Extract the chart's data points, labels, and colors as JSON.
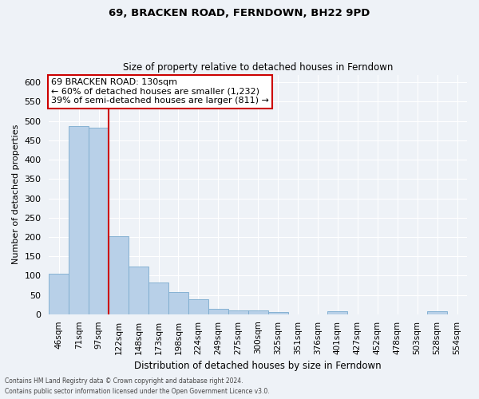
{
  "title": "69, BRACKEN ROAD, FERNDOWN, BH22 9PD",
  "subtitle": "Size of property relative to detached houses in Ferndown",
  "xlabel": "Distribution of detached houses by size in Ferndown",
  "ylabel": "Number of detached properties",
  "footer_line1": "Contains HM Land Registry data © Crown copyright and database right 2024.",
  "footer_line2": "Contains public sector information licensed under the Open Government Licence v3.0.",
  "categories": [
    "46sqm",
    "71sqm",
    "97sqm",
    "122sqm",
    "148sqm",
    "173sqm",
    "198sqm",
    "224sqm",
    "249sqm",
    "275sqm",
    "300sqm",
    "325sqm",
    "351sqm",
    "376sqm",
    "401sqm",
    "427sqm",
    "452sqm",
    "478sqm",
    "503sqm",
    "528sqm",
    "554sqm"
  ],
  "values": [
    105,
    487,
    483,
    202,
    123,
    82,
    57,
    38,
    15,
    10,
    10,
    5,
    0,
    0,
    8,
    0,
    0,
    0,
    0,
    8,
    0
  ],
  "bar_color": "#b8d0e8",
  "bar_edge_color": "#7aabce",
  "annotation_text": "69 BRACKEN ROAD: 130sqm\n← 60% of detached houses are smaller (1,232)\n39% of semi-detached houses are larger (811) →",
  "annotation_box_color": "#ffffff",
  "annotation_box_edge_color": "#cc0000",
  "red_line_color": "#cc0000",
  "bg_color": "#eef2f7",
  "grid_color": "#ffffff",
  "ylim": [
    0,
    620
  ],
  "yticks": [
    0,
    50,
    100,
    150,
    200,
    250,
    300,
    350,
    400,
    450,
    500,
    550,
    600
  ]
}
